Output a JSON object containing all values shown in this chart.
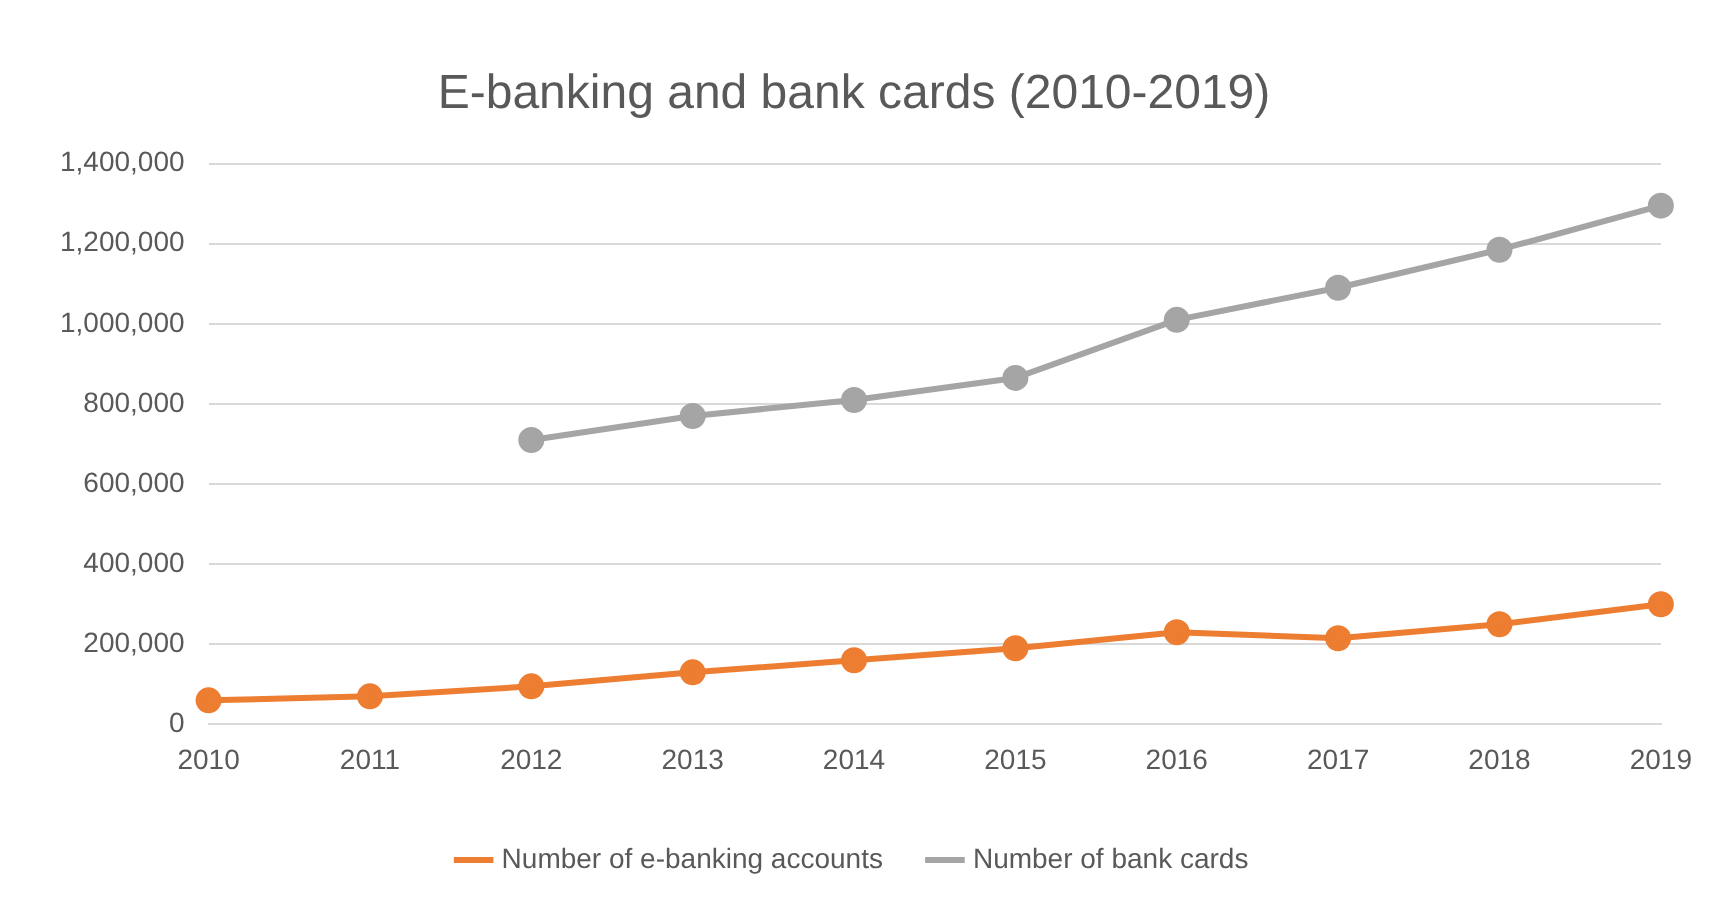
{
  "chart_data": {
    "type": "line",
    "title": "E-banking and bank cards (2010-2019)",
    "categories": [
      "2010",
      "2011",
      "2012",
      "2013",
      "2014",
      "2015",
      "2016",
      "2017",
      "2018",
      "2019"
    ],
    "series": [
      {
        "name": "Number of e-banking accounts",
        "color": "#ed7d31",
        "values": [
          60000,
          70000,
          95000,
          130000,
          160000,
          190000,
          230000,
          215000,
          250000,
          300000
        ]
      },
      {
        "name": "Number of bank cards",
        "color": "#a5a5a5",
        "values": [
          null,
          null,
          710000,
          770000,
          810000,
          865000,
          1010000,
          1090000,
          1185000,
          1295000
        ]
      }
    ],
    "ylim": [
      0,
      1400000
    ],
    "yticks": [
      0,
      {
        "value": 200000,
        "label": "200,000"
      },
      {
        "value": 400000,
        "label": "400,000"
      },
      {
        "value": 600000,
        "label": "600,000"
      },
      {
        "value": 800000,
        "label": "800,000"
      },
      {
        "value": 1000000,
        "label": "1,000,000"
      },
      {
        "value": 1200000,
        "label": "1,200,000"
      },
      {
        "value": 1400000,
        "label": "1,400,000"
      }
    ],
    "grid": "y",
    "legend": "bottom",
    "marker": "circle",
    "line_style": "solid"
  }
}
